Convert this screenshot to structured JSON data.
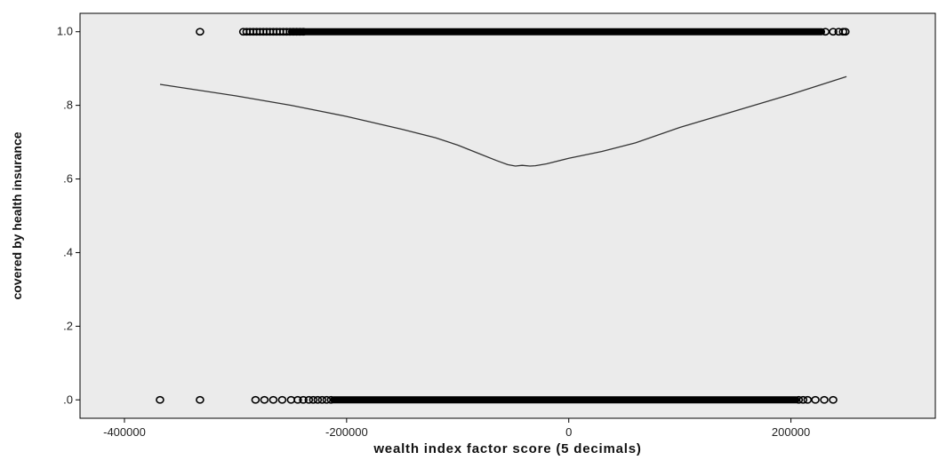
{
  "chart_data": {
    "type": "scatter",
    "xlabel": "wealth index factor score (5 decimals)",
    "ylabel": "covered by health insurance",
    "xlim": [
      -440000,
      330000
    ],
    "ylim": [
      -0.05,
      1.05
    ],
    "x_ticks": [
      -400000,
      -200000,
      0,
      200000
    ],
    "x_tick_labels": [
      "-400000",
      "-200000",
      "0",
      "200000"
    ],
    "y_ticks": [
      0,
      0.2,
      0.4,
      0.6,
      0.8,
      1.0
    ],
    "y_tick_labels": [
      ".0",
      ".2",
      ".4",
      ".6",
      ".8",
      "1.0"
    ],
    "grid": false,
    "plot_background": "#ebebeb",
    "marker_color": "#000000",
    "line_color": "#333333",
    "series": [
      {
        "kind": "points",
        "y": 1,
        "x": [
          -332000,
          -293000,
          -290000,
          -287000,
          -284000,
          -281000,
          -278000,
          -275000,
          -272000,
          -269000,
          -266000,
          -263000,
          -260000,
          -257000,
          -254000,
          -251000,
          -248000,
          -245000,
          -242000,
          -239000,
          231000,
          238000,
          243000,
          247000,
          249000
        ],
        "x_dense_range": [
          -250000,
          228000
        ]
      },
      {
        "kind": "points",
        "y": 0,
        "x": [
          -368000,
          -332000,
          -282000,
          -274000,
          -266000,
          -258000,
          -250000,
          -244000,
          -239000,
          -234000,
          -230000,
          -226000,
          -222000,
          -218000,
          -214000,
          207000,
          211000,
          215000,
          222000,
          230000,
          238000
        ],
        "x_dense_range": [
          -212000,
          205000
        ]
      },
      {
        "kind": "fit-line",
        "x": [
          -368000,
          -300000,
          -250000,
          -200000,
          -150000,
          -120000,
          -100000,
          -80000,
          -65000,
          -55000,
          -48000,
          -42000,
          -35000,
          -30000,
          -20000,
          0,
          30000,
          60000,
          100000,
          150000,
          200000,
          250000
        ],
        "y": [
          0.857,
          0.826,
          0.8,
          0.77,
          0.735,
          0.712,
          0.692,
          0.668,
          0.65,
          0.639,
          0.635,
          0.637,
          0.635,
          0.636,
          0.641,
          0.656,
          0.675,
          0.698,
          0.74,
          0.785,
          0.83,
          0.878
        ]
      }
    ]
  }
}
